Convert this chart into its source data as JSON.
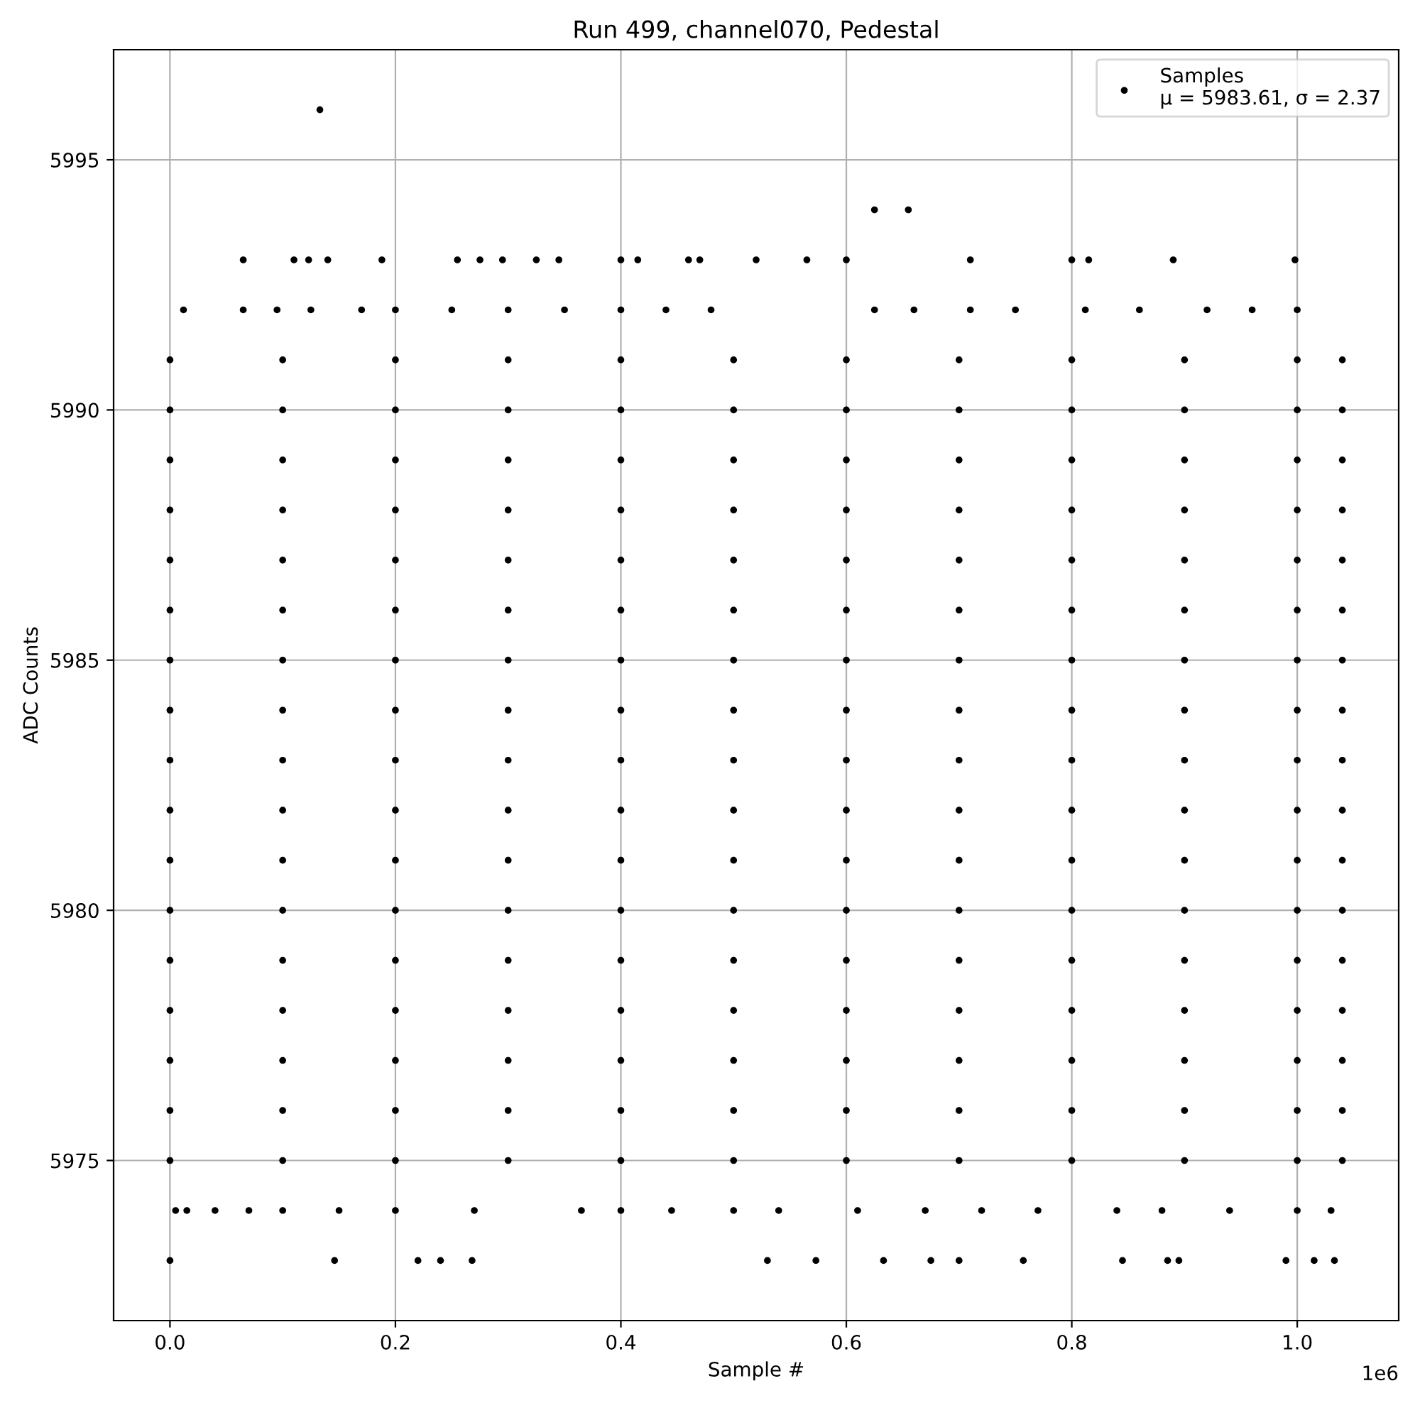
{
  "chart_data": {
    "type": "scatter",
    "title": "Run 499, channel070, Pedestal",
    "xlabel": "Sample #",
    "ylabel": "ADC Counts",
    "xlim": [
      -0.05,
      1.09
    ],
    "ylim": [
      5971.8,
      5997.2
    ],
    "xticks": [
      {
        "value": 0,
        "label": "0.0"
      },
      0.2,
      0.4,
      0.6,
      0.8,
      {
        "value": 1,
        "label": "1.0"
      }
    ],
    "yticks": [
      5975,
      5980,
      5985,
      5990,
      5995
    ],
    "annotations": [
      "1e6"
    ],
    "grid": true,
    "legend": "top right",
    "marker": "circle",
    "series": [
      {
        "name": "Samples\nμ = 5983.61, σ = 2.37",
        "color": "#000000",
        "x": [
          0,
          0.1,
          0.2,
          0.3,
          0.4,
          0.5,
          0.6,
          0.7,
          0.8,
          0.9,
          1.0,
          1.04,
          0,
          0.1,
          0.2,
          0.3,
          0.4,
          0.5,
          0.6,
          0.7,
          0.8,
          0.9,
          1.0,
          1.04,
          0,
          0.1,
          0.2,
          0.3,
          0.4,
          0.5,
          0.6,
          0.7,
          0.8,
          0.9,
          1.0,
          1.04,
          0,
          0.1,
          0.2,
          0.3,
          0.4,
          0.5,
          0.6,
          0.7,
          0.8,
          0.9,
          1.0,
          1.04,
          0,
          0.1,
          0.2,
          0.3,
          0.4,
          0.5,
          0.6,
          0.7,
          0.8,
          0.9,
          1.0,
          1.04,
          0,
          0.1,
          0.2,
          0.3,
          0.4,
          0.5,
          0.6,
          0.7,
          0.8,
          0.9,
          1.0,
          1.04,
          0,
          0.1,
          0.2,
          0.3,
          0.4,
          0.5,
          0.6,
          0.7,
          0.8,
          0.9,
          1.0,
          1.04,
          0,
          0.1,
          0.2,
          0.3,
          0.4,
          0.5,
          0.6,
          0.7,
          0.8,
          0.9,
          1.0,
          1.04,
          0,
          0.1,
          0.2,
          0.3,
          0.4,
          0.5,
          0.6,
          0.7,
          0.8,
          0.9,
          1.0,
          1.04,
          0,
          0.1,
          0.2,
          0.3,
          0.4,
          0.5,
          0.6,
          0.7,
          0.8,
          0.9,
          1.0,
          1.04,
          0,
          0.1,
          0.2,
          0.3,
          0.4,
          0.5,
          0.6,
          0.7,
          0.8,
          0.9,
          1.0,
          1.04,
          0,
          0.1,
          0.2,
          0.3,
          0.4,
          0.5,
          0.6,
          0.7,
          0.8,
          0.9,
          1.0,
          1.04,
          0,
          0.1,
          0.2,
          0.3,
          0.4,
          0.5,
          0.6,
          0.7,
          0.8,
          0.9,
          1.0,
          1.04,
          0,
          0.1,
          0.2,
          0.3,
          0.4,
          0.5,
          0.6,
          0.7,
          0.8,
          0.9,
          1.0,
          1.04,
          0,
          0.1,
          0.2,
          0.3,
          0.4,
          0.5,
          0.6,
          0.7,
          0.8,
          0.9,
          1.0,
          1.04,
          0,
          0.1,
          0.2,
          0.3,
          0.4,
          0.5,
          0.6,
          0.7,
          0.8,
          0.9,
          1.0,
          1.04,
          0,
          0.1,
          0.2,
          0.3,
          0.4,
          0.5,
          0.6,
          0.7,
          0.8,
          0.9,
          1.0,
          1.04,
          0,
          0.146,
          0.22,
          0.24,
          0.268,
          0.53,
          0.573,
          0.633,
          0.675,
          0.7,
          0.757,
          0.845,
          0.885,
          0.895,
          0.99,
          1.015,
          1.033,
          0.005,
          0.015,
          0.04,
          0.07,
          0.1,
          0.15,
          0.2,
          0.27,
          0.365,
          0.4,
          0.445,
          0.5,
          0.54,
          0.61,
          0.67,
          0.72,
          0.77,
          0.84,
          0.88,
          0.94,
          1.0,
          1.03,
          0.012,
          0.065,
          0.095,
          0.125,
          0.17,
          0.2,
          0.25,
          0.3,
          0.35,
          0.4,
          0.44,
          0.48,
          0.625,
          0.66,
          0.71,
          0.75,
          0.812,
          0.86,
          0.92,
          0.96,
          1.0,
          0.065,
          0.11,
          0.123,
          0.14,
          0.188,
          0.255,
          0.275,
          0.295,
          0.325,
          0.345,
          0.4,
          0.415,
          0.46,
          0.47,
          0.52,
          0.565,
          0.6,
          0.71,
          0.8,
          0.815,
          0.89,
          0.998,
          0.625,
          0.655,
          0.133
        ],
        "values": [
          5975,
          5975,
          5975,
          5975,
          5975,
          5975,
          5975,
          5975,
          5975,
          5975,
          5975,
          5975,
          5976,
          5976,
          5976,
          5976,
          5976,
          5976,
          5976,
          5976,
          5976,
          5976,
          5976,
          5976,
          5977,
          5977,
          5977,
          5977,
          5977,
          5977,
          5977,
          5977,
          5977,
          5977,
          5977,
          5977,
          5978,
          5978,
          5978,
          5978,
          5978,
          5978,
          5978,
          5978,
          5978,
          5978,
          5978,
          5978,
          5979,
          5979,
          5979,
          5979,
          5979,
          5979,
          5979,
          5979,
          5979,
          5979,
          5979,
          5979,
          5980,
          5980,
          5980,
          5980,
          5980,
          5980,
          5980,
          5980,
          5980,
          5980,
          5980,
          5980,
          5981,
          5981,
          5981,
          5981,
          5981,
          5981,
          5981,
          5981,
          5981,
          5981,
          5981,
          5981,
          5982,
          5982,
          5982,
          5982,
          5982,
          5982,
          5982,
          5982,
          5982,
          5982,
          5982,
          5982,
          5983,
          5983,
          5983,
          5983,
          5983,
          5983,
          5983,
          5983,
          5983,
          5983,
          5983,
          5983,
          5984,
          5984,
          5984,
          5984,
          5984,
          5984,
          5984,
          5984,
          5984,
          5984,
          5984,
          5984,
          5985,
          5985,
          5985,
          5985,
          5985,
          5985,
          5985,
          5985,
          5985,
          5985,
          5985,
          5985,
          5986,
          5986,
          5986,
          5986,
          5986,
          5986,
          5986,
          5986,
          5986,
          5986,
          5986,
          5986,
          5987,
          5987,
          5987,
          5987,
          5987,
          5987,
          5987,
          5987,
          5987,
          5987,
          5987,
          5987,
          5988,
          5988,
          5988,
          5988,
          5988,
          5988,
          5988,
          5988,
          5988,
          5988,
          5988,
          5988,
          5989,
          5989,
          5989,
          5989,
          5989,
          5989,
          5989,
          5989,
          5989,
          5989,
          5989,
          5989,
          5990,
          5990,
          5990,
          5990,
          5990,
          5990,
          5990,
          5990,
          5990,
          5990,
          5990,
          5990,
          5991,
          5991,
          5991,
          5991,
          5991,
          5991,
          5991,
          5991,
          5991,
          5991,
          5991,
          5991,
          5973,
          5973,
          5973,
          5973,
          5973,
          5973,
          5973,
          5973,
          5973,
          5973,
          5973,
          5973,
          5973,
          5973,
          5973,
          5973,
          5973,
          5974,
          5974,
          5974,
          5974,
          5974,
          5974,
          5974,
          5974,
          5974,
          5974,
          5974,
          5974,
          5974,
          5974,
          5974,
          5974,
          5974,
          5974,
          5974,
          5974,
          5974,
          5974,
          5992,
          5992,
          5992,
          5992,
          5992,
          5992,
          5992,
          5992,
          5992,
          5992,
          5992,
          5992,
          5992,
          5992,
          5992,
          5992,
          5992,
          5992,
          5992,
          5992,
          5992,
          5993,
          5993,
          5993,
          5993,
          5993,
          5993,
          5993,
          5993,
          5993,
          5993,
          5993,
          5993,
          5993,
          5993,
          5993,
          5993,
          5993,
          5993,
          5993,
          5993,
          5993,
          5993,
          5994,
          5994,
          5996
        ]
      }
    ]
  }
}
